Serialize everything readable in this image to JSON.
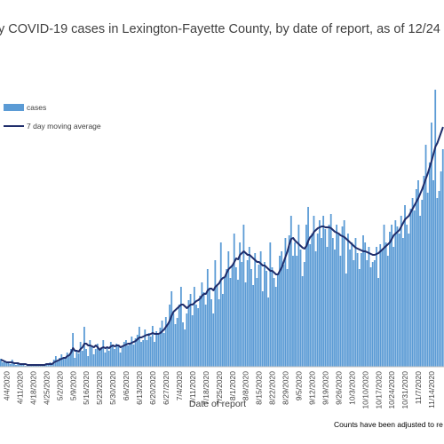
{
  "chart_data": {
    "type": "bar",
    "title": "y COVID-19 cases in Lexington-Fayette County, by date of report, as of 12/24",
    "xlabel": "Date of report",
    "ylabel": "",
    "note": "Counts have been adjusted to re",
    "grid": false,
    "legend_position": "left",
    "x_tick_labels": [
      "4/4/2020",
      "4/11/2020",
      "4/18/2020",
      "4/25/2020",
      "5/2/2020",
      "5/9/2020",
      "5/16/2020",
      "5/23/2020",
      "5/30/2020",
      "6/6/2020",
      "6/13/2020",
      "6/20/2020",
      "6/27/2020",
      "7/4/2020",
      "7/11/2020",
      "7/18/2020",
      "7/25/2020",
      "8/1/2020",
      "8/8/2020",
      "8/15/2020",
      "8/22/2020",
      "8/29/2020",
      "9/5/2020",
      "9/12/2020",
      "9/19/2020",
      "9/26/2020",
      "10/3/2020",
      "10/10/2020",
      "10/17/2020",
      "10/24/2020",
      "10/31/2020",
      "11/7/2020",
      "11/14/2020"
    ],
    "series": [
      {
        "name": "cases",
        "kind": "bar",
        "color": "#5b9bd5",
        "values": [
          9,
          5,
          7,
          4,
          6,
          3,
          8,
          4,
          2,
          5,
          3,
          2,
          3,
          1,
          2,
          1,
          3,
          2,
          1,
          2,
          3,
          2,
          3,
          2,
          4,
          3,
          5,
          4,
          8,
          12,
          6,
          10,
          14,
          9,
          11,
          16,
          13,
          20,
          38,
          10,
          18,
          15,
          28,
          18,
          45,
          20,
          12,
          30,
          22,
          14,
          20,
          26,
          18,
          22,
          30,
          16,
          22,
          18,
          28,
          25,
          20,
          26,
          24,
          16,
          22,
          28,
          30,
          24,
          26,
          34,
          25,
          32,
          36,
          45,
          28,
          30,
          42,
          30,
          38,
          34,
          46,
          28,
          40,
          36,
          44,
          52,
          38,
          56,
          48,
          70,
          85,
          60,
          48,
          55,
          70,
          90,
          50,
          42,
          60,
          75,
          82,
          58,
          90,
          70,
          66,
          80,
          95,
          84,
          70,
          110,
          88,
          76,
          60,
          120,
          92,
          76,
          140,
          82,
          100,
          110,
          130,
          100,
          115,
          150,
          112,
          98,
          140,
          118,
          160,
          95,
          120,
          135,
          110,
          92,
          128,
          100,
          115,
          130,
          85,
          118,
          108,
          78,
          140,
          112,
          100,
          90,
          105,
          125,
          130,
          115,
          145,
          110,
          148,
          170,
          125,
          140,
          125,
          160,
          132,
          102,
          118,
          160,
          180,
          138,
          150,
          170,
          130,
          150,
          165,
          145,
          170,
          155,
          135,
          160,
          172,
          145,
          132,
          160,
          150,
          125,
          158,
          165,
          105,
          150,
          132,
          140,
          120,
          145,
          128,
          110,
          128,
          148,
          140,
          120,
          135,
          112,
          118,
          120,
          135,
          100,
          138,
          132,
          160,
          140,
          125,
          152,
          160,
          135,
          165,
          158,
          150,
          170,
          145,
          182,
          160,
          150,
          178,
          190,
          176,
          200,
          210,
          170,
          188,
          215,
          250,
          196,
          230,
          275,
          210,
          312,
          190,
          198,
          220,
          245
        ]
      },
      {
        "name": "7 day moving average",
        "kind": "line",
        "color": "#1f2d6b",
        "values": [
          8,
          7,
          6,
          5,
          5,
          5,
          5,
          4,
          4,
          4,
          3,
          3,
          3,
          3,
          2,
          2,
          2,
          2,
          2,
          2,
          2,
          2,
          2,
          2,
          3,
          3,
          3,
          3,
          5,
          6,
          7,
          8,
          9,
          10,
          10,
          12,
          13,
          16,
          21,
          18,
          18,
          17,
          20,
          22,
          26,
          26,
          24,
          24,
          23,
          22,
          24,
          22,
          19,
          21,
          22,
          21,
          22,
          21,
          23,
          24,
          23,
          24,
          24,
          22,
          23,
          24,
          25,
          26,
          26,
          27,
          28,
          29,
          31,
          33,
          33,
          34,
          35,
          36,
          36,
          37,
          38,
          37,
          37,
          37,
          38,
          40,
          42,
          45,
          48,
          52,
          58,
          62,
          64,
          66,
          68,
          70,
          70,
          68,
          66,
          68,
          70,
          70,
          72,
          74,
          75,
          77,
          80,
          82,
          82,
          86,
          88,
          88,
          86,
          90,
          92,
          94,
          98,
          100,
          101,
          106,
          110,
          112,
          114,
          118,
          122,
          121,
          126,
          128,
          130,
          128,
          126,
          126,
          124,
          122,
          120,
          118,
          118,
          116,
          114,
          114,
          112,
          110,
          108,
          108,
          106,
          104,
          104,
          108,
          112,
          118,
          124,
          130,
          138,
          144,
          145,
          142,
          140,
          138,
          136,
          134,
          133,
          136,
          142,
          146,
          148,
          152,
          154,
          156,
          157,
          158,
          158,
          157,
          157,
          157,
          156,
          154,
          152,
          151,
          150,
          148,
          147,
          146,
          144,
          142,
          140,
          138,
          136,
          134,
          133,
          132,
          131,
          130,
          130,
          129,
          128,
          127,
          126,
          126,
          127,
          128,
          130,
          132,
          134,
          136,
          138,
          140,
          144,
          148,
          150,
          152,
          154,
          158,
          162,
          166,
          168,
          170,
          174,
          178,
          182,
          186,
          190,
          195,
          200,
          206,
          212,
          218,
          225,
          232,
          240,
          248,
          252,
          258,
          264,
          270
        ]
      }
    ],
    "ylim": [
      0,
      330
    ]
  }
}
